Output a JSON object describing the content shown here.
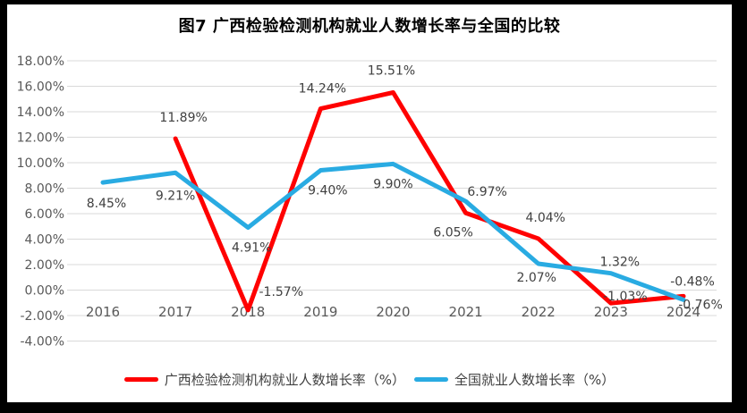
{
  "title": "图7 广西检验检测机构就业人数增长率与全国的比较",
  "legend": [
    {
      "label": "广西检验检测机构就业人数增长率（%）",
      "color": "#FF0000"
    },
    {
      "label": "全国就业人数增长率（%）",
      "color": "#29ABE2"
    }
  ],
  "colors": {
    "guangxi_line": "#FF0000",
    "national_line": "#29ABE2",
    "gridline": "#D9D9D9",
    "axis_text": "#595959",
    "data_label_text": "#404040",
    "frame_border": "#000000",
    "background": "#FFFFFF"
  },
  "chart_data": {
    "type": "line",
    "title": "图7 广西检验检测机构就业人数增长率与全国的比较",
    "categories": [
      "2016",
      "2017",
      "2018",
      "2019",
      "2020",
      "2021",
      "2022",
      "2023",
      "2024"
    ],
    "y_ticks": [
      "18.00%",
      "16.00%",
      "14.00%",
      "12.00%",
      "10.00%",
      "8.00%",
      "6.00%",
      "4.00%",
      "2.00%",
      "0.00%",
      "-2.00%",
      "-4.00%"
    ],
    "ylim": [
      -4,
      18
    ],
    "y_step": 2,
    "grid": true,
    "legend_position": "bottom",
    "xlabel": "",
    "ylabel": "",
    "series": [
      {
        "name": "广西检验检测机构就业人数增长率（%）",
        "color": "#FF0000",
        "values": [
          null,
          11.89,
          -1.57,
          14.24,
          15.51,
          6.05,
          4.04,
          -1.03,
          -0.48
        ],
        "point_labels": [
          "",
          "11.89%",
          "-1.57%",
          "14.24%",
          "15.51%",
          "6.05%",
          "4.04%",
          "-1.03%",
          "-0.48%"
        ],
        "label_offsets": [
          [
            0,
            0
          ],
          [
            9,
            -24
          ],
          [
            37,
            -21
          ],
          [
            2,
            -23
          ],
          [
            -2,
            -25
          ],
          [
            -14,
            21
          ],
          [
            8,
            -24
          ],
          [
            16,
            -8
          ],
          [
            10,
            -17
          ]
        ]
      },
      {
        "name": "全国就业人数增长率（%）",
        "color": "#29ABE2",
        "values": [
          8.45,
          9.21,
          4.91,
          9.4,
          9.9,
          6.97,
          2.07,
          1.32,
          -0.76
        ],
        "point_labels": [
          "8.45%",
          "9.21%",
          "4.91%",
          "9.40%",
          "9.90%",
          "6.97%",
          "2.07%",
          "1.32%",
          "-0.76%"
        ],
        "label_offsets": [
          [
            4,
            23
          ],
          [
            0,
            25
          ],
          [
            4,
            22
          ],
          [
            8,
            22
          ],
          [
            0,
            22
          ],
          [
            24,
            -11
          ],
          [
            -2,
            15
          ],
          [
            10,
            -13
          ],
          [
            19,
            5
          ]
        ]
      }
    ]
  }
}
